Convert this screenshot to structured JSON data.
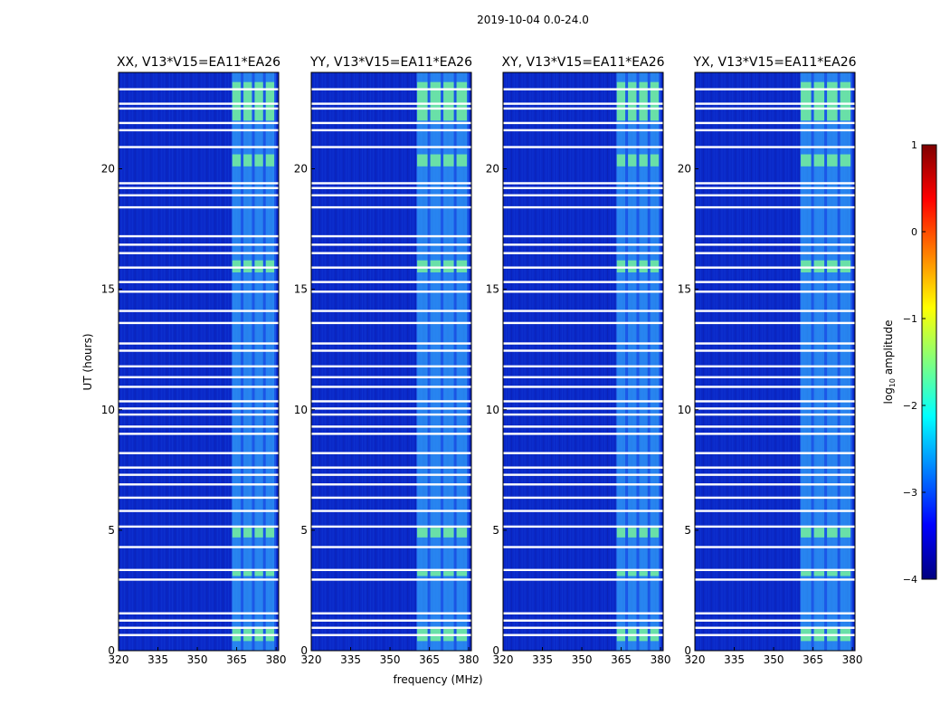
{
  "figure_title": "2019-10-04 0.0-24.0",
  "colorbar": {
    "label_prefix": "log",
    "label_sub": "10",
    "label_suffix": " amplitude",
    "ticks": [
      {
        "value": 1,
        "label": "1"
      },
      {
        "value": 0,
        "label": "0"
      },
      {
        "value": -1,
        "label": "−1"
      },
      {
        "value": -2,
        "label": "−2"
      },
      {
        "value": -3,
        "label": "−3"
      },
      {
        "value": -4,
        "label": "−4"
      }
    ],
    "range": [
      -4,
      1
    ],
    "colors": [
      "#00007f",
      "#0000ff",
      "#007fff",
      "#00ffff",
      "#7fff7f",
      "#ffff00",
      "#ff7f00",
      "#ff0000",
      "#7f0000"
    ]
  },
  "chart_data": {
    "type": "heatmap",
    "xlabel": "frequency (MHz)",
    "ylabel": "UT (hours)",
    "xlim": [
      320,
      381
    ],
    "ylim": [
      0,
      24
    ],
    "x_ticks": [
      320,
      335,
      350,
      365,
      380
    ],
    "y_ticks": [
      0,
      5,
      10,
      15,
      20
    ],
    "panels": [
      {
        "title": "XX, V13*V15=EA11*EA26",
        "rfi_band": [
          363,
          380
        ]
      },
      {
        "title": "YY, V13*V15=EA11*EA26",
        "rfi_band": [
          360,
          380
        ]
      },
      {
        "title": "XY, V13*V15=EA11*EA26",
        "rfi_band": [
          363,
          380
        ]
      },
      {
        "title": "YX, V13*V15=EA11*EA26",
        "rfi_band": [
          360,
          380
        ]
      }
    ],
    "flagged_hours": [
      0.65,
      0.95,
      1.25,
      1.55,
      2.95,
      3.35,
      4.3,
      5.15,
      5.8,
      6.35,
      6.9,
      7.3,
      7.6,
      8.2,
      9.0,
      9.3,
      9.8,
      10.05,
      10.35,
      10.95,
      11.35,
      11.8,
      12.45,
      12.75,
      13.6,
      14.1,
      14.9,
      15.3,
      15.9,
      16.5,
      16.85,
      17.2,
      18.4,
      18.9,
      19.2,
      19.4,
      20.9,
      21.6,
      21.9,
      22.5,
      22.7,
      23.3
    ]
  }
}
